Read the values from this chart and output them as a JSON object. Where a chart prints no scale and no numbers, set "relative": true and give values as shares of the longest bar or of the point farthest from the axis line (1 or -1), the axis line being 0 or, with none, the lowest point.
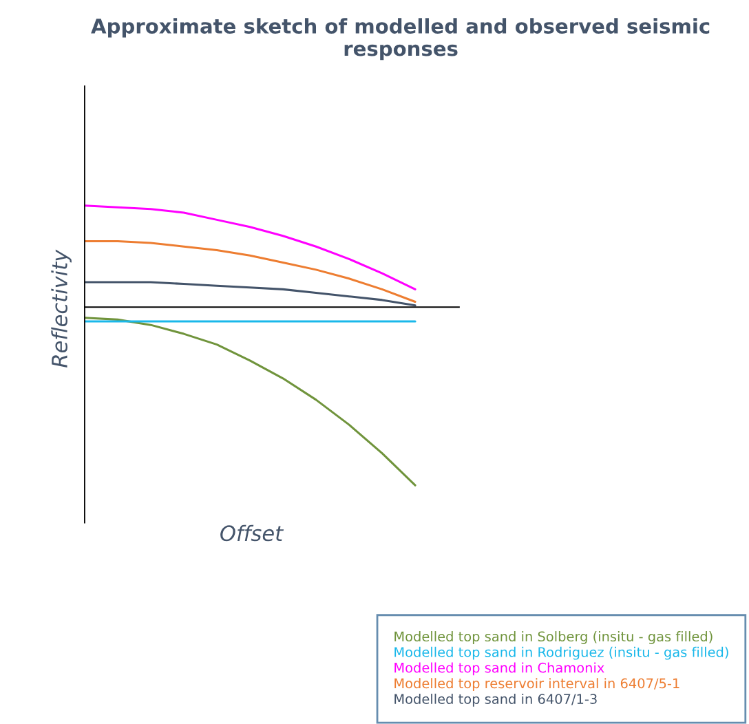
{
  "chart_data": {
    "type": "line",
    "title": "Approximate sketch of modelled and observed seismic responses",
    "xlabel": "Offset",
    "ylabel": "Reflectivity",
    "relative": true,
    "legend": "bottom right",
    "marker": "none",
    "line_style": "solid",
    "categories": [
      null,
      null,
      null,
      null,
      null,
      null,
      null,
      null,
      null,
      null,
      null
    ],
    "series": [
      {
        "name": "Modelled top sand in Solberg (insitu - gas filled)",
        "color": "#70943c",
        "values": [
          -0.06,
          -0.07,
          -0.1,
          -0.15,
          -0.21,
          -0.3,
          -0.4,
          -0.52,
          -0.66,
          -0.82,
          -1
        ]
      },
      {
        "name": "Modelled top sand in Rodriguez (insitu - gas filled)",
        "color": "#1ab8ea",
        "values": [
          -0.08,
          -0.08,
          -0.08,
          -0.08,
          -0.08,
          -0.08,
          -0.08,
          -0.08,
          -0.08,
          -0.08,
          -0.08
        ]
      },
      {
        "name": "Modelled top sand in Chamonix",
        "color": "#ff00ff",
        "values": [
          0.57,
          0.56,
          0.55,
          0.53,
          0.49,
          0.45,
          0.4,
          0.34,
          0.27,
          0.19,
          0.1
        ]
      },
      {
        "name": "Modelled top reservoir interval in 6407/5-1",
        "color": "#ed7d31",
        "values": [
          0.37,
          0.37,
          0.36,
          0.34,
          0.32,
          0.29,
          0.25,
          0.21,
          0.16,
          0.1,
          0.03
        ]
      },
      {
        "name": "Modelled top sand in 6407/1-3",
        "color": "#44546a",
        "values": [
          0.14,
          0.14,
          0.14,
          0.13,
          0.12,
          0.11,
          0.1,
          0.08,
          0.06,
          0.04,
          0.01
        ]
      }
    ]
  }
}
